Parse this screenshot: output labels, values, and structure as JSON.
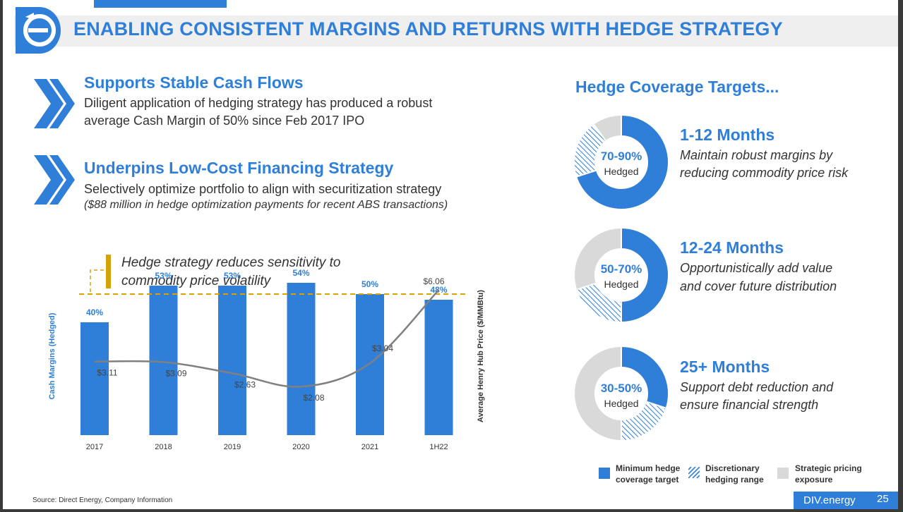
{
  "header": {
    "title": "ENABLING CONSISTENT MARGINS AND RETURNS WITH HEDGE STRATEGY"
  },
  "sections": [
    {
      "title": "Supports Stable Cash Flows",
      "body": [
        "Diligent application of hedging strategy has produced a robust",
        "average Cash Margin of 50% since Feb 2017 IPO"
      ]
    },
    {
      "title": "Underpins Low-Cost Financing Strategy",
      "body": [
        "Selectively optimize portfolio to align with securitization strategy"
      ],
      "note": "($88 million in hedge optimization payments for recent ABS transactions)"
    }
  ],
  "hedge_note": [
    "Hedge strategy reduces sensitivity to",
    "commodity price volatility"
  ],
  "chart_data": {
    "type": "bar",
    "categories": [
      "2017",
      "2018",
      "2019",
      "2020",
      "2021",
      "1H22"
    ],
    "ylabel": "Cash Margins (Hedged)",
    "y2label": "Average Henry Hub Price ($/MMBtu)",
    "series": [
      {
        "values": [
          40,
          53,
          53,
          54,
          50,
          48
        ],
        "labels": [
          "40%",
          "53%",
          "53%",
          "54%",
          "50%",
          "48%"
        ],
        "type": "bar",
        "color": "#2f7fd8"
      },
      {
        "values": [
          3.11,
          3.09,
          2.63,
          2.08,
          3.04,
          6.06
        ],
        "labels": [
          "$3.11",
          "$3.09",
          "$2.63",
          "$2.08",
          "$3.04",
          "$6.06"
        ],
        "type": "line",
        "color": "#808080"
      }
    ],
    "reference_line": {
      "value": 50,
      "style": "dashed",
      "color": "#d4a20a"
    },
    "grid": false
  },
  "right": {
    "title": "Hedge Coverage Targets...",
    "tiers": [
      {
        "pct": "70-90%",
        "sub": "Hedged",
        "title": "1-12 Months",
        "desc": [
          "Maintain robust margins by",
          "reducing commodity price risk"
        ],
        "min": 0.7,
        "disc": 0.2
      },
      {
        "pct": "50-70%",
        "sub": "Hedged",
        "title": "12-24 Months",
        "desc": [
          "Opportunistically add value",
          "and cover future distribution"
        ],
        "min": 0.5,
        "disc": 0.2
      },
      {
        "pct": "30-50%",
        "sub": "Hedged",
        "title": "25+ Months",
        "desc": [
          "Support debt reduction and",
          "ensure financial strength"
        ],
        "min": 0.3,
        "disc": 0.2
      }
    ],
    "legend": [
      {
        "label": [
          "Minimum hedge",
          "coverage target"
        ],
        "color": "#2f7fd8"
      },
      {
        "label": [
          "Discretionary",
          "hedging range"
        ],
        "color": "#2f7fd8"
      },
      {
        "label": [
          "Strategic pricing",
          "exposure"
        ],
        "color": "#d9d9d9"
      }
    ]
  },
  "footer": {
    "source": "Source: Direct Energy, Company Information",
    "brand": "DIV.energy",
    "page": "25"
  },
  "colors": {
    "accent": "#2f7fd8",
    "gold": "#d4a20a",
    "gray": "#d9d9d9",
    "line": "#808080"
  }
}
